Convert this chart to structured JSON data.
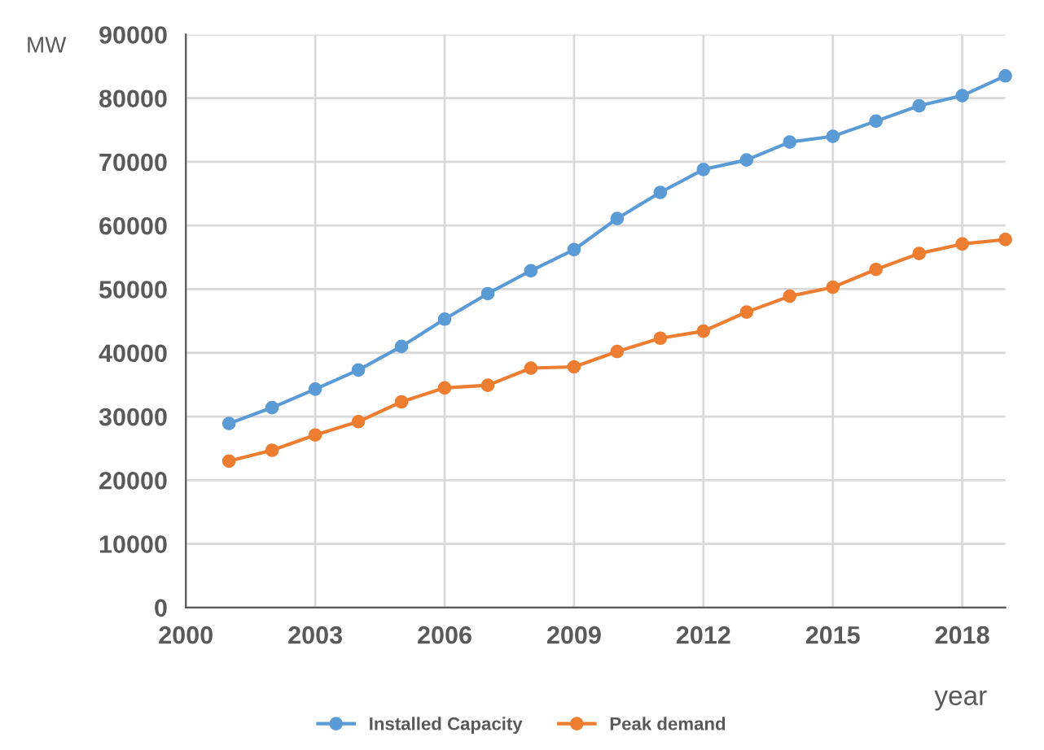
{
  "chart_data": {
    "type": "line",
    "ylabel": "MW",
    "xlabel": "year",
    "x": [
      2001,
      2002,
      2003,
      2004,
      2005,
      2006,
      2007,
      2008,
      2009,
      2010,
      2011,
      2012,
      2013,
      2014,
      2015,
      2016,
      2017,
      2018,
      2019
    ],
    "series": [
      {
        "name": "Installed Capacity",
        "color": "#5b9bd5",
        "values": [
          28900,
          31400,
          34300,
          37300,
          41000,
          45300,
          49300,
          52900,
          56200,
          61100,
          65200,
          68800,
          70300,
          73100,
          74000,
          76400,
          78800,
          80400,
          83500
        ]
      },
      {
        "name": "Peak demand",
        "color": "#ed7d31",
        "values": [
          23000,
          24700,
          27100,
          29200,
          32300,
          34500,
          34900,
          37600,
          37800,
          40200,
          42300,
          43400,
          46400,
          48900,
          50300,
          53100,
          55600,
          57100,
          57800
        ]
      }
    ],
    "xlim": [
      2000,
      2019
    ],
    "xticks": [
      2000,
      2003,
      2006,
      2009,
      2012,
      2015,
      2018
    ],
    "ylim": [
      0,
      90000
    ],
    "yticks": [
      0,
      10000,
      20000,
      30000,
      40000,
      50000,
      60000,
      70000,
      80000,
      90000
    ],
    "grid": true,
    "legend": "bottom",
    "marker": "circle",
    "line_style": "solid"
  }
}
